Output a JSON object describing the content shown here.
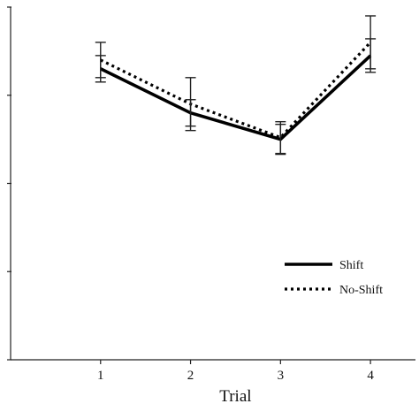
{
  "chart_data": {
    "type": "line",
    "title": "",
    "xlabel": "Trial",
    "ylabel": "",
    "x": [
      1,
      2,
      3,
      4
    ],
    "xlim": [
      0,
      4.5
    ],
    "ylim": [
      0,
      4
    ],
    "grid": false,
    "legend_position": "bottom-right",
    "series": [
      {
        "name": "Shift",
        "style": "solid",
        "color": "#000000",
        "values": [
          3.3,
          2.8,
          2.5,
          3.45
        ],
        "error": [
          0.15,
          0.15,
          0.17,
          0.19
        ]
      },
      {
        "name": "No-Shift",
        "style": "dotted",
        "color": "#000000",
        "values": [
          3.4,
          2.9,
          2.52,
          3.6
        ],
        "error": [
          0.2,
          0.3,
          0.18,
          0.3
        ]
      }
    ]
  }
}
